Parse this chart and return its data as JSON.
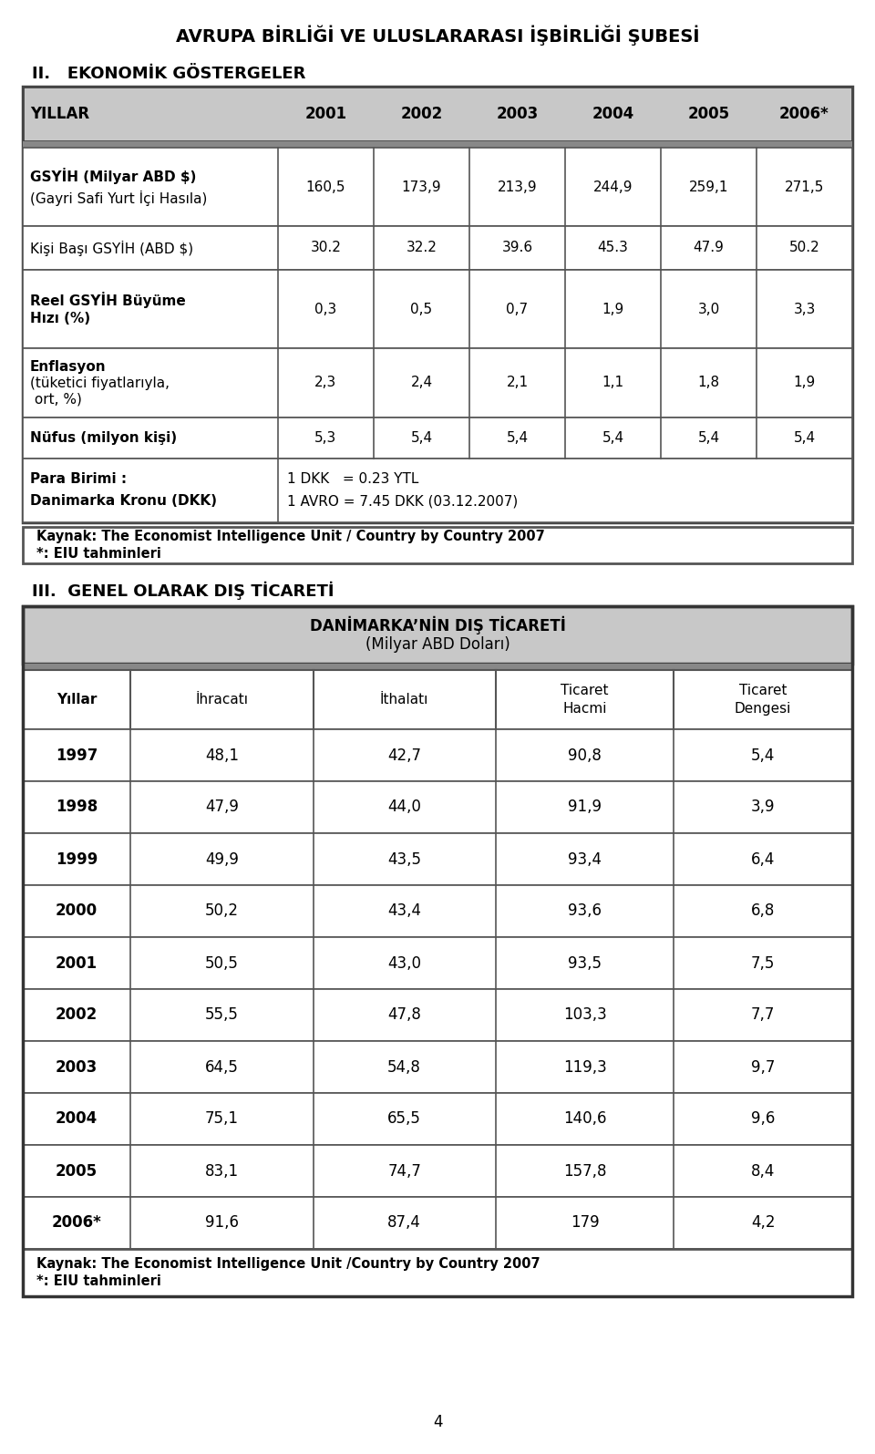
{
  "page_title": "AVRUPA BİRLİĞİ VE ULUSLARARASI İŞBİRLİĞİ ŞUBESİ",
  "section2_title": "II.   EKONOMİK GÖSTERGELER",
  "table1_header": [
    "YILLAR",
    "2001",
    "2002",
    "2003",
    "2004",
    "2005",
    "2006*"
  ],
  "row_labels": [
    "GSYİH (Milyar ABD $)\n(Gayri Safi Yurt İçi Hasıla)",
    "Kişi Başı GSYİH (ABD $)",
    "Reel GSYİH Büyüme\nHızı (%)",
    "Enflasyon\n(tüketici fiyatlarıyla,\n ort, %)",
    "Nüfus (milyon kişi)",
    "Para Birimi :\n\nDanimarka Kronu (DKK)"
  ],
  "row_data": [
    [
      "160,5",
      "173,9",
      "213,9",
      "244,9",
      "259,1",
      "271,5"
    ],
    [
      "30.2",
      "32.2",
      "39.6",
      "45.3",
      "47.9",
      "50.2"
    ],
    [
      "0,3",
      "0,5",
      "0,7",
      "1,9",
      "3,0",
      "3,3"
    ],
    [
      "2,3",
      "2,4",
      "2,1",
      "1,1",
      "1,8",
      "1,9"
    ],
    [
      "5,3",
      "5,4",
      "5,4",
      "5,4",
      "5,4",
      "5,4"
    ],
    []
  ],
  "currency_line1": "1 DKK   = 0.23 YTL",
  "currency_line2": "1 AVRO = 7.45 DKK (03.12.2007)",
  "table1_note_line1": "Kaynak: The Economist Intelligence Unit / Country by Country 2007",
  "table1_note_line2": "*: EIU tahminleri",
  "section3_title": "III.  GENEL OLARAK DIŞ TİCARETİ",
  "table2_main_title": "DANİMARKA’NİN DIŞ TİCARETİ",
  "table2_sub_title": "(Milyar ABD Doları)",
  "table2_header": [
    "Yıllar",
    "İhracatı",
    "İthalatı",
    "Ticaret\nHacmi",
    "Ticaret\nDengesi"
  ],
  "table2_rows": [
    [
      "1997",
      "48,1",
      "42,7",
      "90,8",
      "5,4"
    ],
    [
      "1998",
      "47,9",
      "44,0",
      "91,9",
      "3,9"
    ],
    [
      "1999",
      "49,9",
      "43,5",
      "93,4",
      "6,4"
    ],
    [
      "2000",
      "50,2",
      "43,4",
      "93,6",
      "6,8"
    ],
    [
      "2001",
      "50,5",
      "43,0",
      "93,5",
      "7,5"
    ],
    [
      "2002",
      "55,5",
      "47,8",
      "103,3",
      "7,7"
    ],
    [
      "2003",
      "64,5",
      "54,8",
      "119,3",
      "9,7"
    ],
    [
      "2004",
      "75,1",
      "65,5",
      "140,6",
      "9,6"
    ],
    [
      "2005",
      "83,1",
      "74,7",
      "157,8",
      "8,4"
    ],
    [
      "2006*",
      "91,6",
      "87,4",
      "179",
      "4,2"
    ]
  ],
  "table2_note_line1": "Kaynak: The Economist Intelligence Unit /Country by Country 2007",
  "table2_note_line2": "*: EIU tahminleri",
  "page_number": "4"
}
